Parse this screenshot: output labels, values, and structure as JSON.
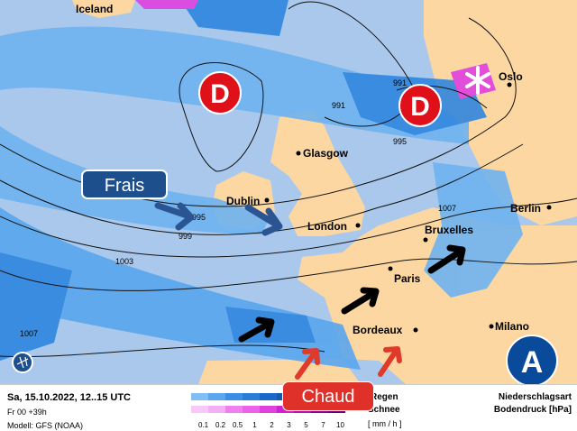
{
  "colors": {
    "sea": "#a9c8ec",
    "land": "#fcd7a2",
    "precip_light": "#6fb3f0",
    "precip_mid": "#2f86e0",
    "precip_dark": "#1460c0",
    "snow": "#e040e0",
    "low": "#e0101a",
    "high": "#0a4a9a"
  },
  "map": {
    "cities": [
      "Iceland",
      "Oslo",
      "Glasgow",
      "Dublin",
      "London",
      "Bruxelles",
      "Berlin",
      "Paris",
      "Bordeaux",
      "Milano"
    ],
    "isobars": [
      "991",
      "991",
      "995",
      "995",
      "999",
      "1003",
      "1007",
      "1007"
    ],
    "lows": [
      "D",
      "D"
    ],
    "high": "A",
    "labels": {
      "cold": "Frais",
      "warm": "Chaud"
    },
    "icons": [
      "snowflake-icon",
      "logo-globe-icon"
    ]
  },
  "footer": {
    "datetime": "Sa, 15.10.2022, 12..15 UTC",
    "run": "Fr 00 +39h",
    "model": "Modell: GFS (NOAA)",
    "scale_ticks": [
      "0.1",
      "0.2",
      "0.5",
      "1",
      "2",
      "3",
      "5",
      "7",
      "10"
    ],
    "rain_label": "Regen",
    "snow_label": "Schnee",
    "unit": "[ mm / h ]",
    "title1": "Niederschlagsart",
    "title2": "Bodendruck [hPa]"
  }
}
